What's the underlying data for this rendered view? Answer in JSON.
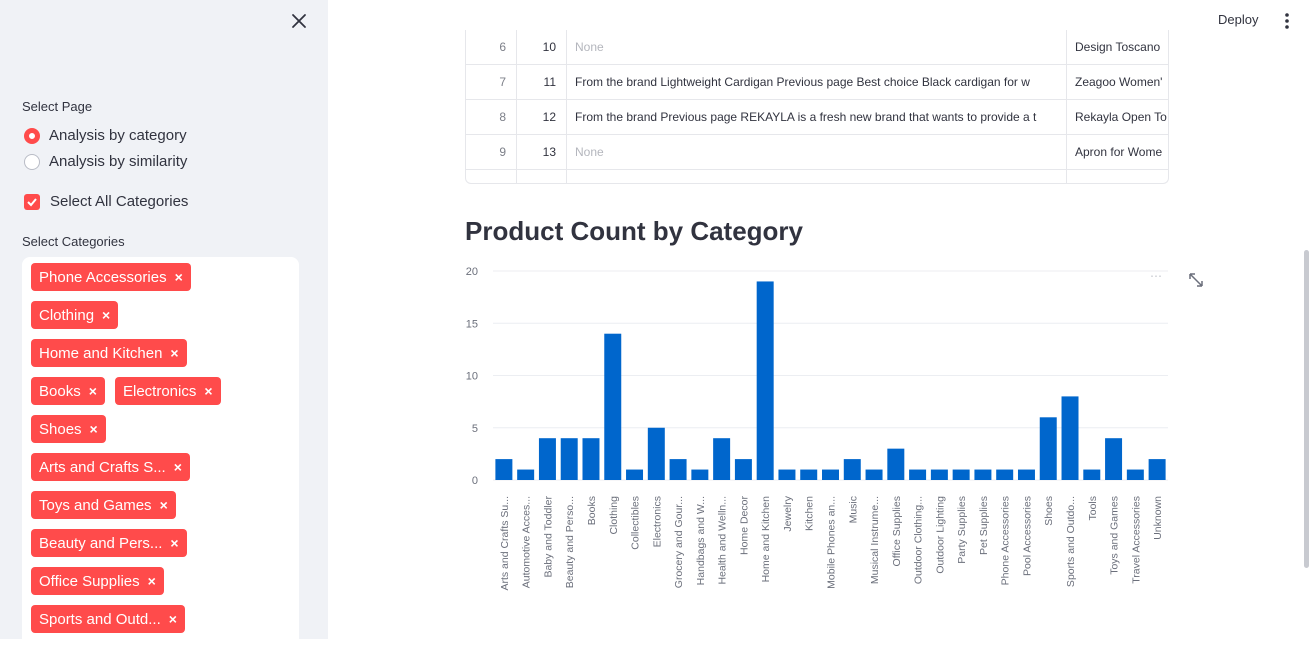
{
  "sidebar": {
    "select_page_label": "Select Page",
    "pages": [
      {
        "label": "Analysis by category",
        "selected": true
      },
      {
        "label": "Analysis by similarity",
        "selected": false
      }
    ],
    "select_all_label": "Select All Categories",
    "select_all_checked": true,
    "select_categories_label": "Select Categories",
    "chips": [
      "Phone Accessories",
      "Clothing",
      "Home and Kitchen",
      "Books",
      "Electronics",
      "Shoes",
      "Arts and Crafts S...",
      "Toys and Games",
      "Beauty and Pers...",
      "Office Supplies",
      "Sports and Outd..."
    ],
    "chip_color": "#ff4b4b"
  },
  "header": {
    "deploy_label": "Deploy"
  },
  "table": {
    "rows": [
      {
        "index": "6",
        "id": "10",
        "description": "None",
        "title": "Design Toscano"
      },
      {
        "index": "7",
        "id": "11",
        "description": "From the brand Lightweight Cardigan Previous page Best choice Black cardigan for w",
        "title": "Zeagoo Women'"
      },
      {
        "index": "8",
        "id": "12",
        "description": "From the brand Previous page REKAYLA is a fresh new brand that wants to provide a t",
        "title": "Rekayla Open To"
      },
      {
        "index": "9",
        "id": "13",
        "description": "None",
        "title": "Apron for Wome"
      }
    ]
  },
  "chart_heading": "Product Count by Category",
  "chart_data": {
    "type": "bar",
    "title": "",
    "xlabel": "",
    "ylabel": "",
    "ylim": [
      0,
      20
    ],
    "yticks": [
      "0",
      "5",
      "10",
      "15",
      "20"
    ],
    "grid": true,
    "bar_color": "#0066cc",
    "categories": [
      "Arts and Crafts Su...",
      "Automotive Acces...",
      "Baby and Toddler",
      "Beauty and Perso...",
      "Books",
      "Clothing",
      "Collectibles",
      "Electronics",
      "Grocery and Gour...",
      "Handbags and W...",
      "Health and Welln...",
      "Home Decor",
      "Home and Kitchen",
      "Jewelry",
      "Kitchen",
      "Mobile Phones an...",
      "Music",
      "Musical Instrume...",
      "Office Supplies",
      "Outdoor Clothing...",
      "Outdoor Lighting",
      "Party Supplies",
      "Pet Supplies",
      "Phone Accessories",
      "Pool Accessories",
      "Shoes",
      "Sports and Outdo...",
      "Tools",
      "Toys and Games",
      "Travel Accessories",
      "Unknown"
    ],
    "values": [
      2,
      1,
      4,
      4,
      4,
      14,
      1,
      5,
      2,
      1,
      4,
      2,
      19,
      1,
      1,
      1,
      2,
      1,
      3,
      1,
      1,
      1,
      1,
      1,
      1,
      6,
      8,
      1,
      4,
      1,
      2
    ]
  }
}
